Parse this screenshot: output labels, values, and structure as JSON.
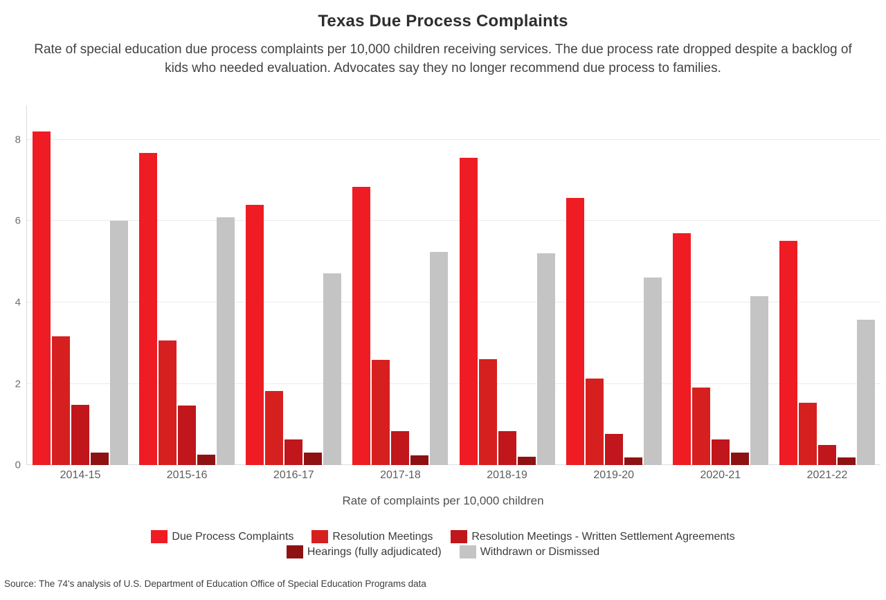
{
  "header": {
    "title": "Texas Due Process Complaints",
    "subtitle": "Rate of special education due process complaints per 10,000 children receiving services. The due process rate dropped despite a backlog of kids who needed evaluation. Advocates say they no longer recommend due process to families."
  },
  "source": "Source: The 74's analysis of U.S. Department of Education Office of Special Education Programs data",
  "chart_data": {
    "type": "bar",
    "title": "Texas Due Process Complaints",
    "xlabel": "Rate of complaints per 10,000 children",
    "ylabel": "",
    "categories": [
      "2014-15",
      "2015-16",
      "2016-17",
      "2017-18",
      "2018-19",
      "2019-20",
      "2020-21",
      "2021-22"
    ],
    "series": [
      {
        "name": "Due Process Complaints",
        "color": "#EF1C23",
        "values": [
          8.2,
          7.67,
          6.4,
          6.85,
          7.55,
          6.57,
          5.71,
          5.52
        ]
      },
      {
        "name": "Resolution Meetings",
        "color": "#D6201F",
        "values": [
          3.17,
          3.06,
          1.82,
          2.58,
          2.61,
          2.13,
          1.91,
          1.54
        ]
      },
      {
        "name": "Resolution Meetings - Written Settlement Agreements",
        "color": "#C0161C",
        "values": [
          1.48,
          1.47,
          0.63,
          0.83,
          0.83,
          0.77,
          0.63,
          0.5
        ]
      },
      {
        "name": "Hearings (fully adjudicated)",
        "color": "#8F1213",
        "values": [
          0.31,
          0.26,
          0.3,
          0.24,
          0.2,
          0.19,
          0.3,
          0.19
        ]
      },
      {
        "name": "Withdrawn or Dismissed",
        "color": "#C4C4C4",
        "values": [
          6.0,
          6.1,
          4.72,
          5.25,
          5.21,
          4.62,
          4.16,
          3.58
        ]
      }
    ],
    "yticks": [
      0,
      2,
      4,
      6,
      8
    ],
    "ylim": [
      0,
      8.85
    ],
    "grid": "horizontal",
    "legend_position": "bottom",
    "legend_rows": [
      [
        0,
        1,
        2
      ],
      [
        3,
        4
      ]
    ]
  }
}
